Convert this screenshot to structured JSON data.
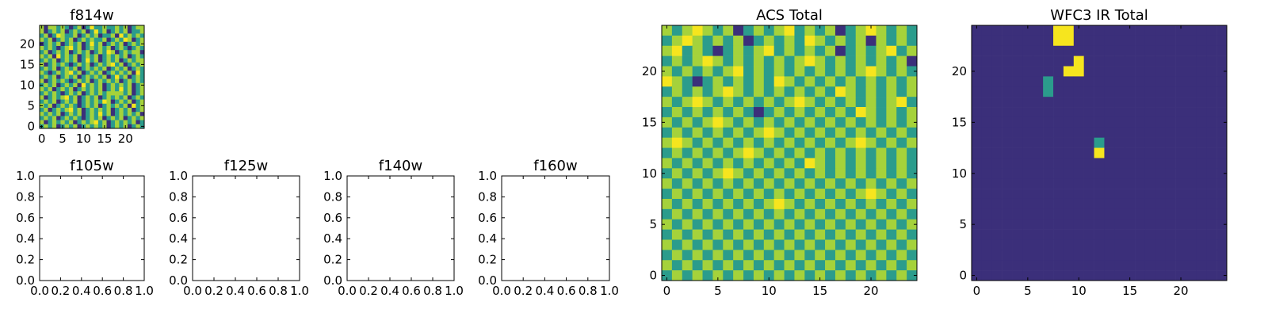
{
  "chart_data": [
    {
      "type": "heatmap",
      "title": "f814w",
      "x_ticks": [
        "0",
        "5",
        "10",
        "15",
        "20"
      ],
      "y_ticks": [
        "0",
        "5",
        "10",
        "15",
        "20"
      ],
      "xlim": [
        -0.5,
        24.5
      ],
      "ylim": [
        -0.5,
        24.5
      ],
      "grid_size": [
        25,
        25
      ],
      "colormap": "viridis",
      "values": [
        "caccbcbabcabdbbcbbcbcabcc",
        "cabcbcabcbcabdbcabcbcabbc",
        "bcabdcbbcabcbcabbcadbcbcb",
        "cbcabcbcabcbcbbcabcbdcabc",
        "abcbcabcbcabdbcabcbcabcbc",
        "cbcbabcdbcabcbcbcabcbabcb",
        "bcabcbcabcbcabcbdcabcbcca",
        "cbcadbcbcabcbcabcbcbcabcb",
        "bcbcabcbcabdbcabcbcabcbcc",
        "cabcbcbabcbcabcbcdbcabcbc",
        "bcbcabcbcabcbcbcabcbcabcb",
        "cbabcbcdbcabcbcabcbcbcadb",
        "bcbcabcbcabcbcbcabdbcabcb",
        "cabcbcbabcbcabcbcbcabcbcb",
        "bcbcabcbcadbcbcabcbcbcabc",
        "cbcabcbcabcbcbcabcbdbcabc",
        "bcbcbabcbcabcbcbccccbcabc",
        "cabcbcdbcabcbcabcbcbcabcb",
        "bcbcabcbcabcbcbdcabcbcabc",
        "cbcabcbcbabcbcabcbcbcadbc",
        "bcabcbcdbcabcbcbcabcbcabc",
        "cbcbcabcbcabcbdbcabcbcbca",
        "bcbcabcbcbabcbcabcbcabcbc",
        "cabcbcbcabcbcdbcabcbcbcab",
        "bcbcabcbcabcbcbcabcbcabcb"
      ]
    },
    {
      "type": "heatmap",
      "title": "f105w",
      "x_ticks": [
        "0.0",
        "0.2",
        "0.4",
        "0.6",
        "0.8",
        "1.0"
      ],
      "y_ticks": [
        "0.0",
        "0.2",
        "0.4",
        "0.6",
        "0.8",
        "1.0"
      ],
      "xlim": [
        0,
        1
      ],
      "ylim": [
        0,
        1
      ],
      "empty": true
    },
    {
      "type": "heatmap",
      "title": "f125w",
      "x_ticks": [
        "0.0",
        "0.2",
        "0.4",
        "0.6",
        "0.8",
        "1.0"
      ],
      "y_ticks": [
        "0.0",
        "0.2",
        "0.4",
        "0.6",
        "0.8",
        "1.0"
      ],
      "xlim": [
        0,
        1
      ],
      "ylim": [
        0,
        1
      ],
      "empty": true
    },
    {
      "type": "heatmap",
      "title": "f140w",
      "x_ticks": [
        "0.0",
        "0.2",
        "0.4",
        "0.6",
        "0.8",
        "1.0"
      ],
      "y_ticks": [
        "0.0",
        "0.2",
        "0.4",
        "0.6",
        "0.8",
        "1.0"
      ],
      "xlim": [
        0,
        1
      ],
      "ylim": [
        0,
        1
      ],
      "empty": true
    },
    {
      "type": "heatmap",
      "title": "f160w",
      "x_ticks": [
        "0.0",
        "0.2",
        "0.4",
        "0.6",
        "0.8",
        "1.0"
      ],
      "y_ticks": [
        "0.0",
        "0.2",
        "0.4",
        "0.6",
        "0.8",
        "1.0"
      ],
      "xlim": [
        0,
        1
      ],
      "ylim": [
        0,
        1
      ],
      "empty": true
    },
    {
      "type": "heatmap",
      "title": "ACS Total",
      "x_ticks": [
        "0",
        "5",
        "10",
        "15",
        "20"
      ],
      "y_ticks": [
        "0",
        "5",
        "10",
        "15",
        "20"
      ],
      "xlim": [
        -0.5,
        24.5
      ],
      "ylim": [
        -0.5,
        24.5
      ],
      "grid_size": [
        25,
        25
      ],
      "colormap": "viridis",
      "values": [
        "cbcdcbcabcbcdbcbcabcdcbcb",
        "bcdcbcbcabcbcbdcbcbcacbcb",
        "cdbcbabcbcdbcbcbcabcbcdbc",
        "bcbcdcbcbcbcbcdcbcbcbcbca",
        "cbcbcbcdbcbcbcbcbcbcdcbcb",
        "dcbabcbcbcbdcbcbcbcbcbcbc",
        "bcbcbcdcbcbcbcbcbdcbcbcbc",
        "cbcdcbcbcbcbcdcbcbcbcbcdb",
        "bcbcbcbcbabcbcbcbcbdcbcbc",
        "cbcbcdcbcbcbcbcbcbcbcbcbc",
        "bcbcbcbcbcdcbcbcbcbcbcbcb",
        "cdcbcbcbcbcbcbcbcbcdcbcbc",
        "bcbcbcbcdcbcbcbcbcbcbcbcb",
        "cbcbcbcbcbcbcbdcbcbcbcbcb",
        "bcbcbcdcbcbcbcbcbcbcbcbcb",
        "cbcbcbcbcbcbcbcbcbcbcbcbc",
        "bcbcbcbcbcbcbcbcbcbcdcbcb",
        "cbcbcbcbcbcdcbcbcbcbcbcbc",
        "bcbcbcbcbcbcbcbcbcbcbcbcb",
        "cbcbcbcbcbcbcbcbcbcbcbcbc",
        "bcbcbcbcbcbcbcbcbcbcbcbcb",
        "cbcbcbcbcbcbcbcbcbcbcbcbc",
        "bcbcbcbcbcbcbcbcbcbcbcbcb",
        "cbcbcbcbcbcbcbcbcbcbcbcbc",
        "bcbcbcbcbcbcbcbcbcbcbcbcb"
      ]
    },
    {
      "type": "heatmap",
      "title": "WFC3 IR Total",
      "x_ticks": [
        "0",
        "5",
        "10",
        "15",
        "20"
      ],
      "y_ticks": [
        "0",
        "5",
        "10",
        "15",
        "20"
      ],
      "xlim": [
        -0.5,
        24.5
      ],
      "ylim": [
        -0.5,
        24.5
      ],
      "grid_size": [
        25,
        25
      ],
      "colormap": "viridis",
      "values": [
        "aaaaaaaaddaaaaaaaaaaaaaaa",
        "aaaaaaaaddaaaaaaaaaaaaaaa",
        "aaaaaaaaaaaaaaaaaaaaaaaaa",
        "aaaaaaaaaadaaaaaaaaaaaaaa",
        "aaaaaaaaaddaaaaaaaaaaaaaa",
        "aaaaaaabaaaaaaaaaaaaaaaaa",
        "aaaaaaabaaaaaaaaaaaaaaaaa",
        "aaaaaaaaaaaaaaaaaaaaaaaaa",
        "aaaaaaaaaaaaaaaaaaaaaaaaa",
        "aaaaaaaaaaaaaaaaaaaaaaaaa",
        "aaaaaaaaaaaaaaaaaaaaaaaaa",
        "aaaaaaaaaaaabaaaaaaaaaaaa",
        "aaaaaaaaaaaadaaaaaaaaaaaa",
        "aaaaaaaaaaaaaaaaaaaaaaaaa",
        "aaaaaaaaaaaaaaaaaaaaaaaaa",
        "aaaaaaaaaaaaaaaaaaaaaaaaa",
        "aaaaaaaaaaaaaaaaaaaaaaaaa",
        "aaaaaaaaaaaaaaaaaaaaaaaaa",
        "aaaaaaaaaaaaaaaaaaaaaaaaa",
        "aaaaaaaaaaaaaaaaaaaaaaaaa",
        "aaaaaaaaaaaaaaaaaaaaaaaaa",
        "aaaaaaaaaaaaaaaaaaaaaaaaa",
        "aaaaaaaaaaaaaaaaaaaaaaaaa",
        "aaaaaaaaaaaaaaaaaaaaaaaaa",
        "aaaaaaaaaaaaaaaaaaaaaaaaa"
      ]
    }
  ]
}
